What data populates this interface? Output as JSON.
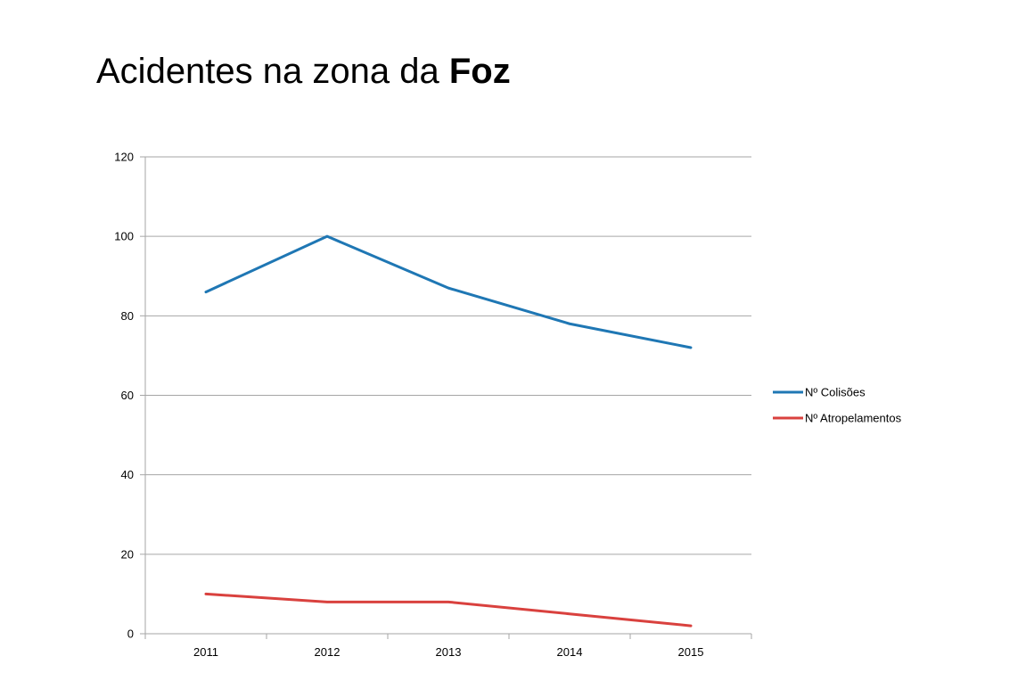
{
  "title": {
    "prefix": "Acidentes na zona da ",
    "emphasis": "Foz"
  },
  "chart_data": {
    "type": "line",
    "title": "",
    "xlabel": "",
    "ylabel": "",
    "categories": [
      "2011",
      "2012",
      "2013",
      "2014",
      "2015"
    ],
    "ylim": [
      0,
      120
    ],
    "yticks": [
      0,
      20,
      40,
      60,
      80,
      100,
      120
    ],
    "grid": true,
    "legend_position": "right",
    "series": [
      {
        "name": "Nº Colisões",
        "color": "#1f77b4",
        "values": [
          86,
          100,
          87,
          78,
          72
        ]
      },
      {
        "name": "Nº Atropelamentos",
        "color": "#d9413e",
        "values": [
          10,
          8,
          8,
          5,
          2
        ]
      }
    ]
  }
}
